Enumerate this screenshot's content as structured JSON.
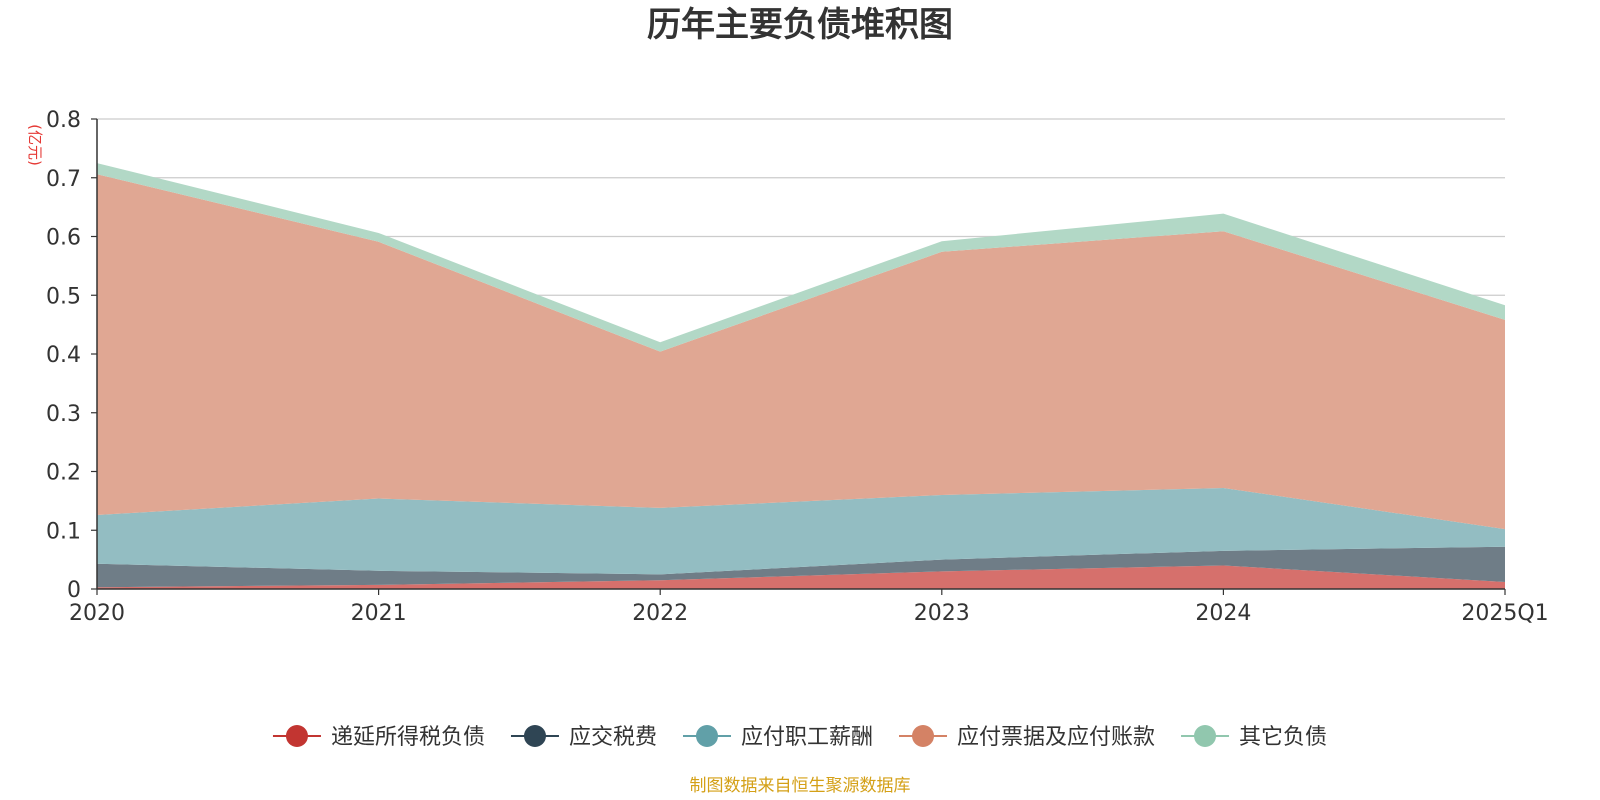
{
  "chart_data": {
    "type": "area",
    "title": "历年主要负债堆积图",
    "unit_label": "(亿元)",
    "source_note": "制图数据来自恒生聚源数据库",
    "stacked": true,
    "ylim": [
      0,
      0.8
    ],
    "y_ticks": [
      "0",
      "0.1",
      "0.2",
      "0.3",
      "0.4",
      "0.5",
      "0.6",
      "0.7",
      "0.8"
    ],
    "categories": [
      "2020",
      "2021",
      "2022",
      "2023",
      "2024",
      "2025Q1"
    ],
    "grid": true,
    "legend_position": "bottom",
    "series": [
      {
        "name": "递延所得税负债",
        "color": "#c23531",
        "fill": "#d6706c",
        "values": [
          0.003,
          0.007,
          0.015,
          0.03,
          0.04,
          0.012
        ]
      },
      {
        "name": "应交税费",
        "color": "#2f4554",
        "fill": "#6f7d87",
        "values": [
          0.04,
          0.024,
          0.01,
          0.02,
          0.025,
          0.06
        ]
      },
      {
        "name": "应付职工薪酬",
        "color": "#61a0a8",
        "fill": "#93bdc2",
        "values": [
          0.083,
          0.123,
          0.113,
          0.11,
          0.107,
          0.03
        ]
      },
      {
        "name": "应付票据及应付账款",
        "color": "#d48265",
        "fill": "#e0a793",
        "values": [
          0.58,
          0.437,
          0.266,
          0.414,
          0.437,
          0.356
        ]
      },
      {
        "name": "其它负债",
        "color": "#91c7ae",
        "fill": "#b2d8c6",
        "values": [
          0.019,
          0.015,
          0.016,
          0.018,
          0.03,
          0.025
        ]
      }
    ]
  }
}
